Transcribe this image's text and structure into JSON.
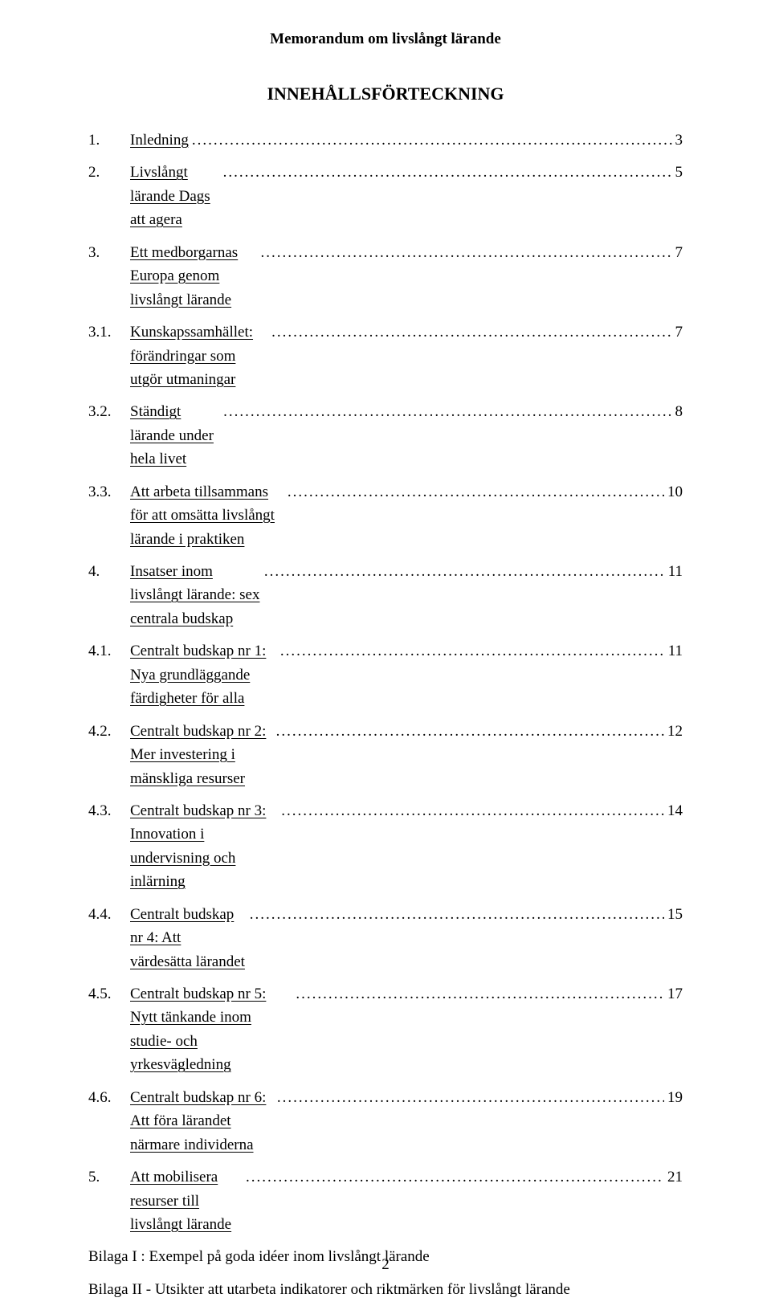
{
  "running_title": "Memorandum om livslångt lärande",
  "toc_title": "INNEHÅLLSFÖRTECKNING",
  "toc": [
    {
      "num": "1.",
      "text": "Inledning",
      "page": "3"
    },
    {
      "num": "2.",
      "text": "Livslångt lärande Dags att agera",
      "page": "5"
    },
    {
      "num": "3.",
      "text": "Ett medborgarnas Europa genom livslångt lärande",
      "page": "7"
    },
    {
      "num": "3.1.",
      "text": "Kunskapssamhället: förändringar som utgör utmaningar",
      "page": "7"
    },
    {
      "num": "3.2.",
      "text": "Ständigt lärande under hela livet",
      "page": "8"
    },
    {
      "num": "3.3.",
      "text": "Att arbeta tillsammans för att omsätta livslångt lärande i praktiken",
      "page": "10"
    },
    {
      "num": "4.",
      "text": "Insatser inom livslångt lärande: sex centrala budskap",
      "page": "11"
    },
    {
      "num": "4.1.",
      "text": "Centralt budskap nr 1: Nya grundläggande färdigheter för alla",
      "page": "11"
    },
    {
      "num": "4.2.",
      "text": "Centralt budskap nr 2: Mer investering i mänskliga resurser",
      "page": "12"
    },
    {
      "num": "4.3.",
      "text": "Centralt budskap nr 3: Innovation i undervisning och inlärning",
      "page": "14"
    },
    {
      "num": "4.4.",
      "text": "Centralt budskap nr 4: Att värdesätta lärandet",
      "page": "15"
    },
    {
      "num": "4.5.",
      "text": "Centralt budskap nr 5: Nytt tänkande inom studie- och yrkesvägledning",
      "page": "17"
    },
    {
      "num": "4.6.",
      "text": "Centralt budskap nr 6: Att föra lärandet närmare individerna",
      "page": "19"
    },
    {
      "num": "5.",
      "text": "Att mobilisera resurser till livslångt lärande",
      "page": "21"
    }
  ],
  "appendix": [
    "Bilaga I : Exempel på goda idéer inom livslångt lärande",
    "Bilaga II - Utsikter att utarbeta indikatorer och riktmärken för livslångt lärande"
  ],
  "page_number": "2",
  "colors": {
    "text": "#000000",
    "background": "#ffffff"
  },
  "typography": {
    "family": "Times New Roman, serif",
    "body_fontsize_pt": 14,
    "title_fontsize_pt": 16
  }
}
